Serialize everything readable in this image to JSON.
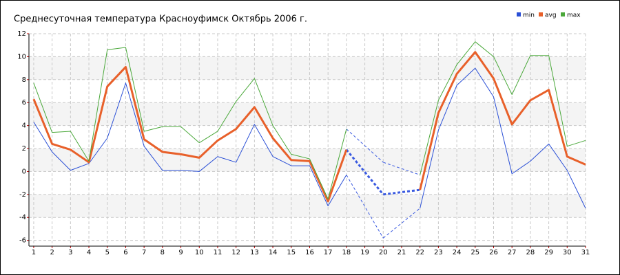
{
  "chart_data": {
    "type": "line",
    "title": "Среднесуточная температура Красноуфимск  Октябрь 2006 г.",
    "x": [
      1,
      2,
      3,
      4,
      5,
      6,
      7,
      8,
      9,
      10,
      11,
      12,
      13,
      14,
      15,
      16,
      17,
      18,
      19,
      20,
      21,
      22,
      23,
      24,
      25,
      26,
      27,
      28,
      29,
      30,
      31
    ],
    "xlim": [
      0.74,
      31
    ],
    "xticks": [
      1,
      2,
      3,
      4,
      5,
      6,
      7,
      8,
      9,
      10,
      11,
      12,
      13,
      14,
      15,
      16,
      17,
      18,
      19,
      20,
      21,
      22,
      23,
      24,
      25,
      26,
      27,
      28,
      29,
      30,
      31
    ],
    "ylim": [
      -6.5,
      12
    ],
    "yticks": [
      -6,
      -4,
      -2,
      0,
      2,
      4,
      6,
      8,
      10,
      12
    ],
    "grid": true,
    "legend": "top-right",
    "gap_color": "#3a5ae0",
    "series": [
      {
        "name": "min",
        "color": "#2a4fd6",
        "values": [
          4.3,
          1.7,
          0.1,
          0.7,
          2.9,
          7.7,
          2.2,
          0.1,
          0.1,
          0.0,
          1.3,
          0.8,
          4.1,
          1.3,
          0.5,
          0.5,
          -3.0,
          -0.3,
          null,
          -5.8,
          null,
          -3.2,
          3.6,
          7.5,
          9.0,
          6.5,
          -0.2,
          0.9,
          2.4,
          0.1,
          -3.2
        ]
      },
      {
        "name": "avg",
        "color": "#e8602a",
        "values": [
          6.3,
          2.4,
          1.9,
          0.8,
          7.4,
          9.1,
          2.8,
          1.7,
          1.5,
          1.2,
          2.7,
          3.7,
          5.6,
          2.9,
          1.0,
          0.9,
          -2.6,
          1.9,
          null,
          -2.0,
          null,
          -1.6,
          5.1,
          8.5,
          10.4,
          8.1,
          4.1,
          6.2,
          7.1,
          1.3,
          0.6
        ]
      },
      {
        "name": "max",
        "color": "#4aa83a",
        "values": [
          7.7,
          3.4,
          3.5,
          0.9,
          10.6,
          10.8,
          3.5,
          3.9,
          3.9,
          2.5,
          3.5,
          6.1,
          8.1,
          4.0,
          1.5,
          1.1,
          -2.4,
          3.7,
          null,
          0.8,
          null,
          -0.3,
          6.2,
          9.3,
          11.3,
          10.0,
          6.7,
          10.1,
          10.1,
          2.2,
          2.7
        ]
      }
    ]
  }
}
